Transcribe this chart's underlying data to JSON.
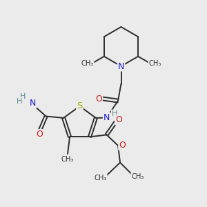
{
  "bg_color": "#ebebeb",
  "atom_colors": {
    "C": "#2d2d2d",
    "H": "#5a8a8a",
    "N": "#1a1acc",
    "O": "#cc1a1a",
    "S": "#aaaa00"
  },
  "bond_color": "#2d2d2d",
  "bond_width": 1.4,
  "figsize": [
    3.0,
    3.0
  ],
  "dpi": 100,
  "xlim": [
    0,
    10
  ],
  "ylim": [
    0,
    10
  ]
}
